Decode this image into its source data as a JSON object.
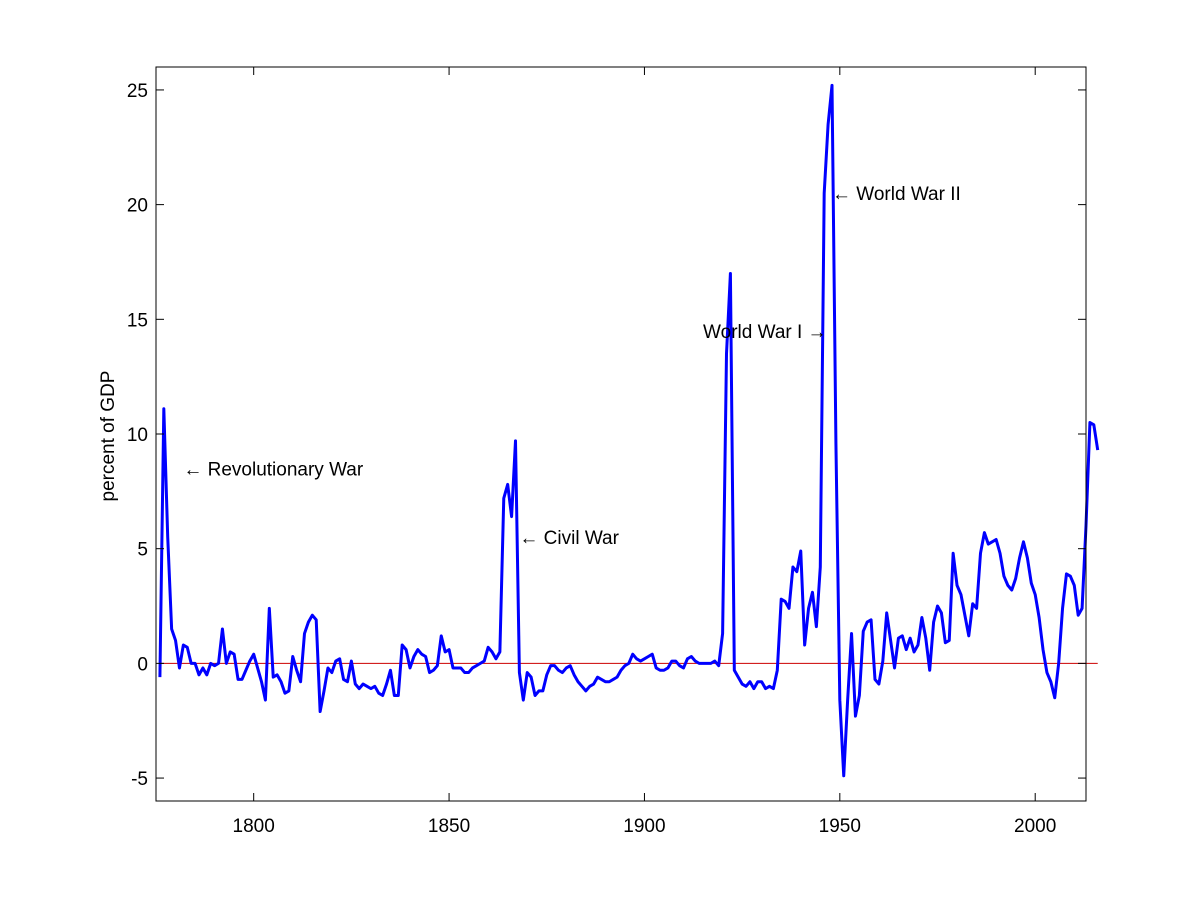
{
  "chart_data": {
    "type": "line",
    "ylabel": "percent of GDP",
    "xlim": [
      1775,
      2013
    ],
    "ylim": [
      -6,
      26
    ],
    "x_ticks": [
      1800,
      1850,
      1900,
      1950,
      2000
    ],
    "y_ticks": [
      -5,
      0,
      5,
      10,
      15,
      20,
      25
    ],
    "grid": false,
    "colors": {
      "series": "#0000ff",
      "zero_line": "#cc0000",
      "axes": "#000000"
    },
    "zero_line": 0,
    "annotations": [
      {
        "text": "← Revolutionary War",
        "x": 1782,
        "y": 8.5
      },
      {
        "text": "← Civil War",
        "x": 1868,
        "y": 5.5
      },
      {
        "text": "World War I →",
        "x": 1915,
        "y": 14.5
      },
      {
        "text": "← World War II",
        "x": 1948,
        "y": 20.5
      }
    ],
    "series": [
      {
        "points": [
          [
            1776,
            -0.6
          ],
          [
            1777,
            11.1
          ],
          [
            1778,
            5.5
          ],
          [
            1779,
            1.5
          ],
          [
            1780,
            1.0
          ],
          [
            1781,
            -0.2
          ],
          [
            1782,
            0.8
          ],
          [
            1783,
            0.7
          ],
          [
            1784,
            0.0
          ],
          [
            1785,
            0.0
          ],
          [
            1786,
            -0.5
          ],
          [
            1787,
            -0.2
          ],
          [
            1788,
            -0.5
          ],
          [
            1789,
            0.0
          ],
          [
            1790,
            -0.1
          ],
          [
            1791,
            0.0
          ],
          [
            1792,
            1.5
          ],
          [
            1793,
            0.0
          ],
          [
            1794,
            0.5
          ],
          [
            1795,
            0.4
          ],
          [
            1796,
            -0.7
          ],
          [
            1797,
            -0.7
          ],
          [
            1798,
            -0.3
          ],
          [
            1799,
            0.1
          ],
          [
            1800,
            0.4
          ],
          [
            1801,
            -0.2
          ],
          [
            1802,
            -0.8
          ],
          [
            1803,
            -1.6
          ],
          [
            1804,
            2.4
          ],
          [
            1805,
            -0.6
          ],
          [
            1806,
            -0.5
          ],
          [
            1807,
            -0.8
          ],
          [
            1808,
            -1.3
          ],
          [
            1809,
            -1.2
          ],
          [
            1810,
            0.3
          ],
          [
            1811,
            -0.3
          ],
          [
            1812,
            -0.8
          ],
          [
            1813,
            1.3
          ],
          [
            1814,
            1.8
          ],
          [
            1815,
            2.1
          ],
          [
            1816,
            1.9
          ],
          [
            1817,
            -2.1
          ],
          [
            1818,
            -1.2
          ],
          [
            1819,
            -0.2
          ],
          [
            1820,
            -0.4
          ],
          [
            1821,
            0.1
          ],
          [
            1822,
            0.2
          ],
          [
            1823,
            -0.7
          ],
          [
            1824,
            -0.8
          ],
          [
            1825,
            0.1
          ],
          [
            1826,
            -0.9
          ],
          [
            1827,
            -1.1
          ],
          [
            1828,
            -0.9
          ],
          [
            1829,
            -1.0
          ],
          [
            1830,
            -1.1
          ],
          [
            1831,
            -1.0
          ],
          [
            1832,
            -1.3
          ],
          [
            1833,
            -1.4
          ],
          [
            1834,
            -0.9
          ],
          [
            1835,
            -0.3
          ],
          [
            1836,
            -1.4
          ],
          [
            1837,
            -1.4
          ],
          [
            1838,
            0.8
          ],
          [
            1839,
            0.6
          ],
          [
            1840,
            -0.2
          ],
          [
            1841,
            0.3
          ],
          [
            1842,
            0.6
          ],
          [
            1843,
            0.4
          ],
          [
            1844,
            0.3
          ],
          [
            1845,
            -0.4
          ],
          [
            1846,
            -0.3
          ],
          [
            1847,
            -0.1
          ],
          [
            1848,
            1.2
          ],
          [
            1849,
            0.5
          ],
          [
            1850,
            0.6
          ],
          [
            1851,
            -0.2
          ],
          [
            1852,
            -0.2
          ],
          [
            1853,
            -0.2
          ],
          [
            1854,
            -0.4
          ],
          [
            1855,
            -0.4
          ],
          [
            1856,
            -0.2
          ],
          [
            1857,
            -0.1
          ],
          [
            1858,
            0.0
          ],
          [
            1859,
            0.1
          ],
          [
            1860,
            0.7
          ],
          [
            1861,
            0.5
          ],
          [
            1862,
            0.2
          ],
          [
            1863,
            0.5
          ],
          [
            1864,
            7.2
          ],
          [
            1865,
            7.8
          ],
          [
            1866,
            6.4
          ],
          [
            1867,
            9.7
          ],
          [
            1868,
            -0.4
          ],
          [
            1869,
            -1.6
          ],
          [
            1870,
            -0.4
          ],
          [
            1871,
            -0.6
          ],
          [
            1872,
            -1.4
          ],
          [
            1873,
            -1.2
          ],
          [
            1874,
            -1.2
          ],
          [
            1875,
            -0.5
          ],
          [
            1876,
            -0.1
          ],
          [
            1877,
            -0.1
          ],
          [
            1878,
            -0.3
          ],
          [
            1879,
            -0.4
          ],
          [
            1880,
            -0.2
          ],
          [
            1881,
            -0.1
          ],
          [
            1882,
            -0.5
          ],
          [
            1883,
            -0.8
          ],
          [
            1884,
            -1.0
          ],
          [
            1885,
            -1.2
          ],
          [
            1886,
            -1.0
          ],
          [
            1887,
            -0.9
          ],
          [
            1888,
            -0.6
          ],
          [
            1889,
            -0.7
          ],
          [
            1890,
            -0.8
          ],
          [
            1891,
            -0.8
          ],
          [
            1892,
            -0.7
          ],
          [
            1893,
            -0.6
          ],
          [
            1894,
            -0.3
          ],
          [
            1895,
            -0.1
          ],
          [
            1896,
            0.0
          ],
          [
            1897,
            0.4
          ],
          [
            1898,
            0.2
          ],
          [
            1899,
            0.1
          ],
          [
            1900,
            0.2
          ],
          [
            1901,
            0.3
          ],
          [
            1902,
            0.4
          ],
          [
            1903,
            -0.2
          ],
          [
            1904,
            -0.3
          ],
          [
            1905,
            -0.3
          ],
          [
            1906,
            -0.2
          ],
          [
            1907,
            0.1
          ],
          [
            1908,
            0.1
          ],
          [
            1909,
            -0.1
          ],
          [
            1910,
            -0.2
          ],
          [
            1911,
            0.2
          ],
          [
            1912,
            0.3
          ],
          [
            1913,
            0.1
          ],
          [
            1914,
            0.0
          ],
          [
            1915,
            0.0
          ],
          [
            1916,
            0.0
          ],
          [
            1917,
            0.0
          ],
          [
            1918,
            0.1
          ],
          [
            1919,
            -0.1
          ],
          [
            1920,
            1.3
          ],
          [
            1921,
            13.5
          ],
          [
            1922,
            17.0
          ],
          [
            1923,
            -0.3
          ],
          [
            1924,
            -0.6
          ],
          [
            1925,
            -0.9
          ],
          [
            1926,
            -1.0
          ],
          [
            1927,
            -0.8
          ],
          [
            1928,
            -1.1
          ],
          [
            1929,
            -0.8
          ],
          [
            1930,
            -0.8
          ],
          [
            1931,
            -1.1
          ],
          [
            1932,
            -1.0
          ],
          [
            1933,
            -1.1
          ],
          [
            1934,
            -0.3
          ],
          [
            1935,
            2.8
          ],
          [
            1936,
            2.7
          ],
          [
            1937,
            2.4
          ],
          [
            1938,
            4.2
          ],
          [
            1939,
            4.0
          ],
          [
            1940,
            4.9
          ],
          [
            1941,
            0.8
          ],
          [
            1942,
            2.4
          ],
          [
            1943,
            3.1
          ],
          [
            1944,
            1.6
          ],
          [
            1945,
            4.2
          ],
          [
            1946,
            20.5
          ],
          [
            1947,
            23.5
          ],
          [
            1948,
            25.2
          ],
          [
            1949,
            9.6
          ],
          [
            1950,
            -1.6
          ],
          [
            1951,
            -4.9
          ],
          [
            1952,
            -1.6
          ],
          [
            1953,
            1.3
          ],
          [
            1954,
            -2.3
          ],
          [
            1955,
            -1.4
          ],
          [
            1956,
            1.4
          ],
          [
            1957,
            1.8
          ],
          [
            1958,
            1.9
          ],
          [
            1959,
            -0.7
          ],
          [
            1960,
            -0.9
          ],
          [
            1961,
            0.1
          ],
          [
            1962,
            2.2
          ],
          [
            1963,
            1.0
          ],
          [
            1964,
            -0.2
          ],
          [
            1965,
            1.1
          ],
          [
            1966,
            1.2
          ],
          [
            1967,
            0.6
          ],
          [
            1968,
            1.1
          ],
          [
            1969,
            0.5
          ],
          [
            1970,
            0.8
          ],
          [
            1971,
            2.0
          ],
          [
            1972,
            1.1
          ],
          [
            1973,
            -0.3
          ],
          [
            1974,
            1.8
          ],
          [
            1975,
            2.5
          ],
          [
            1976,
            2.2
          ],
          [
            1977,
            0.9
          ],
          [
            1978,
            1.0
          ],
          [
            1979,
            4.8
          ],
          [
            1980,
            3.4
          ],
          [
            1981,
            3.0
          ],
          [
            1982,
            2.1
          ],
          [
            1983,
            1.2
          ],
          [
            1984,
            2.6
          ],
          [
            1985,
            2.4
          ],
          [
            1986,
            4.8
          ],
          [
            1987,
            5.7
          ],
          [
            1988,
            5.2
          ],
          [
            1989,
            5.3
          ],
          [
            1990,
            5.4
          ],
          [
            1991,
            4.8
          ],
          [
            1992,
            3.8
          ],
          [
            1993,
            3.4
          ],
          [
            1994,
            3.2
          ],
          [
            1995,
            3.7
          ],
          [
            1996,
            4.6
          ],
          [
            1997,
            5.3
          ],
          [
            1998,
            4.6
          ],
          [
            1999,
            3.5
          ],
          [
            2000,
            3.0
          ],
          [
            2001,
            2.0
          ],
          [
            2002,
            0.6
          ],
          [
            2003,
            -0.4
          ],
          [
            2004,
            -0.8
          ],
          [
            2005,
            -1.5
          ],
          [
            2006,
            0.0
          ],
          [
            2007,
            2.4
          ],
          [
            2008,
            3.9
          ],
          [
            2009,
            3.8
          ],
          [
            2010,
            3.4
          ],
          [
            2011,
            2.1
          ],
          [
            2012,
            2.4
          ],
          [
            2013,
            6.0
          ],
          [
            2014,
            10.5
          ],
          [
            2015,
            10.4
          ],
          [
            2016,
            9.3
          ]
        ]
      }
    ]
  }
}
